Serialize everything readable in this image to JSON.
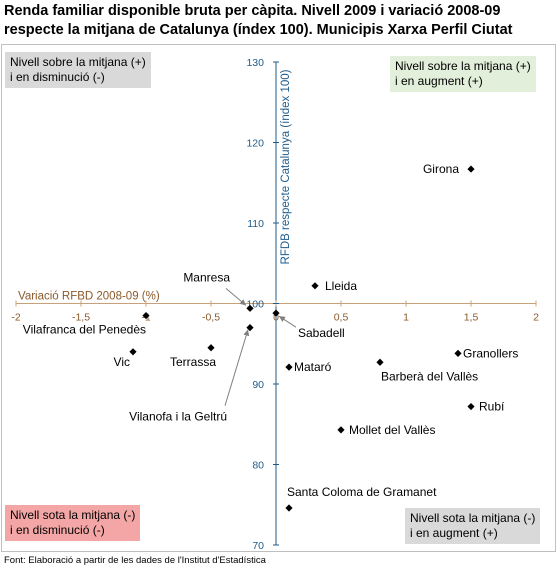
{
  "title_line1": "Renda familiar disponible bruta per càpita. Nivell 2009 i variació 2008-09",
  "title_line2": "respecte la mitjana de Catalunya (índex 100). Municipis Xarxa Perfil Ciutat",
  "quadrants": {
    "top_left": [
      "Nivell sobre la mitjana (+)",
      "i en disminució (-)"
    ],
    "top_right": [
      "Nivell sobre la mitjana (+)",
      "i en augment (+)"
    ],
    "bottom_left": [
      "Nivell sota la mitjana (-)",
      "i en disminució (-)"
    ],
    "bottom_right": [
      "Nivell sota la mitjana (-)",
      "i en augment (+)"
    ]
  },
  "source": "Font: Elaboració a partir de les dades de l'Institut d'Estadística",
  "colors": {
    "axis": "#1f5c8b",
    "xlabel": "#8b5a2b",
    "point": "#000000",
    "xaxis_line": "#c8a07a"
  },
  "chart_data": {
    "type": "scatter",
    "xlabel": "Variació RFBD 2008-09 (%)",
    "ylabel": "RFDB respecte Catalunya (índex 100)",
    "xlim": [
      -2,
      2
    ],
    "ylim": [
      70,
      130
    ],
    "x_ticks": [
      -2,
      -1.5,
      -1,
      -0.5,
      0,
      0.5,
      1,
      1.5,
      2
    ],
    "x_tick_labels": [
      "-2",
      "-1,5",
      "-1",
      "-0,5",
      "0",
      "0,5",
      "1",
      "1,5",
      "2"
    ],
    "y_ticks": [
      70,
      80,
      90,
      100,
      110,
      120,
      130
    ],
    "y_tick_labels": [
      "70",
      "80",
      "90",
      "100",
      "110",
      "120",
      "130"
    ],
    "grid": false,
    "points": [
      {
        "label": "Girona",
        "x": 1.5,
        "y": 116.7
      },
      {
        "label": "Lleida",
        "x": 0.3,
        "y": 102.2
      },
      {
        "label": "Manresa",
        "x": -0.2,
        "y": 99.4
      },
      {
        "label": "Sabadell",
        "x": 0.0,
        "y": 98.8
      },
      {
        "label": "Vilafranca del Penedès",
        "x": -1.0,
        "y": 98.5
      },
      {
        "label": "Vilanofa i la Geltrú",
        "x": -0.2,
        "y": 97.0
      },
      {
        "label": "Terrassa",
        "x": -0.5,
        "y": 94.5
      },
      {
        "label": "Vic",
        "x": -1.1,
        "y": 94.0
      },
      {
        "label": "Granollers",
        "x": 1.4,
        "y": 93.8
      },
      {
        "label": "Barberà del Vallès",
        "x": 0.8,
        "y": 92.7
      },
      {
        "label": "Mataró",
        "x": 0.1,
        "y": 92.1
      },
      {
        "label": "Rubí",
        "x": 1.5,
        "y": 87.2
      },
      {
        "label": "Mollet del Vallès",
        "x": 0.5,
        "y": 84.3
      },
      {
        "label": "Santa Coloma de Gramanet",
        "x": 0.1,
        "y": 74.6
      }
    ]
  }
}
